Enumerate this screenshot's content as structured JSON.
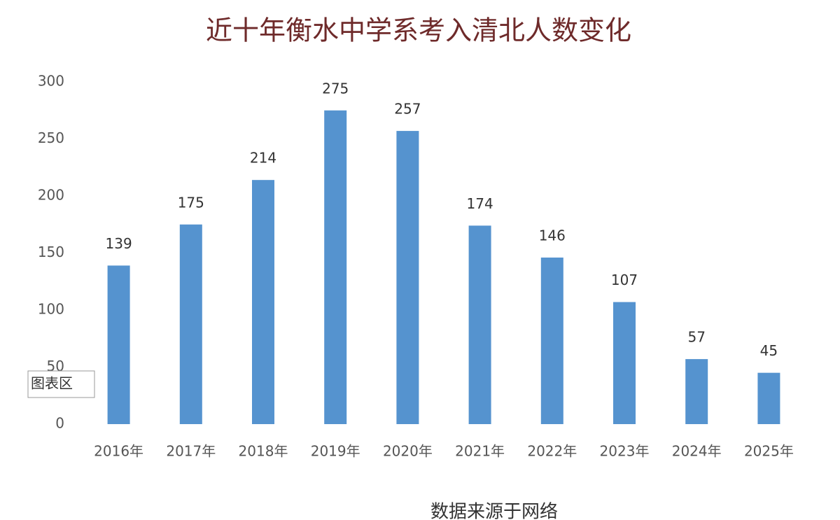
{
  "chart_data": {
    "type": "bar",
    "title": "近十年衡水中学系考入清北人数变化",
    "categories": [
      "2016年",
      "2017年",
      "2018年",
      "2019年",
      "2020年",
      "2021年",
      "2022年",
      "2023年",
      "2024年",
      "2025年"
    ],
    "values": [
      139,
      175,
      214,
      275,
      257,
      174,
      146,
      107,
      57,
      45
    ],
    "color": "#5593cf",
    "ylim": [
      0,
      300
    ],
    "yticks": [
      0,
      50,
      100,
      150,
      200,
      250,
      300
    ],
    "grid": false,
    "source": "数据来源于网络",
    "tooltip": "图表区"
  }
}
